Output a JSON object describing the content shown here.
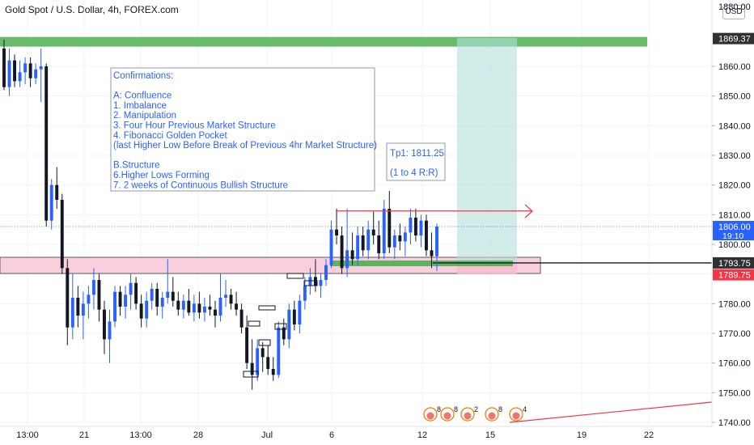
{
  "title": "Gold Spot / U.S. Dollar, 4h, FOREX.com",
  "currency": "USD",
  "price_axis_top": "1880.00",
  "price_labels": [
    {
      "price": 1869.37,
      "text": "1869.37",
      "bg": "#2e3034",
      "fg": "#ffffff"
    },
    {
      "price": 1806.0,
      "text": "1806.00",
      "sub": "19:10",
      "bg": "#2962ff",
      "fg": "#ffffff"
    },
    {
      "price": 1793.75,
      "text": "1793.75",
      "bg": "#2e3034",
      "fg": "#ffffff"
    },
    {
      "price": 1789.75,
      "text": "1789.75",
      "bg": "#f23645",
      "fg": "#ffffff"
    }
  ],
  "annotation": {
    "lines": [
      "Confirmations:",
      "",
      "A: Confluence",
      "1. Imbalance",
      "2. Manipulation",
      "3. Four Hour Previous Market Structure",
      "4. Fibonacci Golden Pocket",
      "(last Higher Low Before Break of Previous 4hr Market Structure)",
      "",
      "B.Structure",
      "6.Higher Lows Forming",
      "7. 2 weeks of Continuous Bullish Structure"
    ],
    "color": "#2962ff"
  },
  "target": {
    "line1": "Tp1: 1811.25",
    "line2": "(1 to 4 R:R)"
  },
  "colors": {
    "up": "#2962ff",
    "down": "#131722",
    "zone_green": "#4caf50",
    "zone_red": "#f8bbd0",
    "tp_fill": "#b2dfdb"
  },
  "events": [
    "8",
    "8",
    "2",
    "8",
    "4"
  ],
  "chart_data": {
    "type": "candlestick",
    "title": "Gold Spot / U.S. Dollar, 4h, FOREX.com",
    "x_tick_labels": [
      "13:00",
      "21",
      "13:00",
      "28",
      "Jul",
      "6",
      "12",
      "15",
      "19",
      "22"
    ],
    "y_ticks": [
      1740,
      1750,
      1760,
      1770,
      1780,
      1790,
      1800,
      1810,
      1820,
      1830,
      1840,
      1850,
      1860
    ],
    "ylim": [
      1738,
      1880
    ],
    "last_price": 1806.0,
    "levels": {
      "supply_zone": [
        1866.5,
        1869.37
      ],
      "demand_zone_top": 1793.75,
      "demand_zone_bottom": 1789.75,
      "take_profit": 1811.25
    },
    "candles": [
      {
        "o": 1866,
        "h": 1869,
        "l": 1852,
        "c": 1853
      },
      {
        "o": 1853,
        "h": 1866,
        "l": 1850,
        "c": 1862
      },
      {
        "o": 1862,
        "h": 1864,
        "l": 1853,
        "c": 1855
      },
      {
        "o": 1855,
        "h": 1862,
        "l": 1853,
        "c": 1858
      },
      {
        "o": 1858,
        "h": 1863,
        "l": 1854,
        "c": 1861
      },
      {
        "o": 1861,
        "h": 1863,
        "l": 1853,
        "c": 1856
      },
      {
        "o": 1856,
        "h": 1861,
        "l": 1854,
        "c": 1859
      },
      {
        "o": 1859,
        "h": 1866,
        "l": 1848,
        "c": 1860
      },
      {
        "o": 1860,
        "h": 1861,
        "l": 1806,
        "c": 1808
      },
      {
        "o": 1808,
        "h": 1822,
        "l": 1805,
        "c": 1820
      },
      {
        "o": 1820,
        "h": 1826,
        "l": 1812,
        "c": 1815
      },
      {
        "o": 1815,
        "h": 1817,
        "l": 1790,
        "c": 1792
      },
      {
        "o": 1792,
        "h": 1795,
        "l": 1766,
        "c": 1772
      },
      {
        "o": 1772,
        "h": 1790,
        "l": 1768,
        "c": 1782
      },
      {
        "o": 1782,
        "h": 1786,
        "l": 1772,
        "c": 1776
      },
      {
        "o": 1776,
        "h": 1784,
        "l": 1768,
        "c": 1780
      },
      {
        "o": 1780,
        "h": 1786,
        "l": 1775,
        "c": 1783
      },
      {
        "o": 1783,
        "h": 1792,
        "l": 1778,
        "c": 1788
      },
      {
        "o": 1788,
        "h": 1790,
        "l": 1774,
        "c": 1778
      },
      {
        "o": 1778,
        "h": 1781,
        "l": 1763,
        "c": 1768
      },
      {
        "o": 1768,
        "h": 1778,
        "l": 1760,
        "c": 1774
      },
      {
        "o": 1774,
        "h": 1786,
        "l": 1772,
        "c": 1784
      },
      {
        "o": 1784,
        "h": 1786,
        "l": 1776,
        "c": 1779
      },
      {
        "o": 1779,
        "h": 1786,
        "l": 1775,
        "c": 1783
      },
      {
        "o": 1783,
        "h": 1790,
        "l": 1778,
        "c": 1787
      },
      {
        "o": 1787,
        "h": 1789,
        "l": 1778,
        "c": 1780
      },
      {
        "o": 1780,
        "h": 1783,
        "l": 1772,
        "c": 1775
      },
      {
        "o": 1775,
        "h": 1784,
        "l": 1772,
        "c": 1781
      },
      {
        "o": 1781,
        "h": 1787,
        "l": 1778,
        "c": 1785
      },
      {
        "o": 1785,
        "h": 1787,
        "l": 1776,
        "c": 1779
      },
      {
        "o": 1779,
        "h": 1784,
        "l": 1775,
        "c": 1782
      },
      {
        "o": 1782,
        "h": 1795,
        "l": 1780,
        "c": 1784
      },
      {
        "o": 1784,
        "h": 1789,
        "l": 1779,
        "c": 1781
      },
      {
        "o": 1781,
        "h": 1784,
        "l": 1776,
        "c": 1778
      },
      {
        "o": 1778,
        "h": 1783,
        "l": 1775,
        "c": 1781
      },
      {
        "o": 1781,
        "h": 1785,
        "l": 1776,
        "c": 1777
      },
      {
        "o": 1777,
        "h": 1783,
        "l": 1774,
        "c": 1780
      },
      {
        "o": 1780,
        "h": 1784,
        "l": 1775,
        "c": 1777
      },
      {
        "o": 1777,
        "h": 1782,
        "l": 1774,
        "c": 1779
      },
      {
        "o": 1779,
        "h": 1783,
        "l": 1776,
        "c": 1778
      },
      {
        "o": 1778,
        "h": 1781,
        "l": 1772,
        "c": 1776
      },
      {
        "o": 1776,
        "h": 1790,
        "l": 1774,
        "c": 1782
      },
      {
        "o": 1782,
        "h": 1788,
        "l": 1779,
        "c": 1783
      },
      {
        "o": 1783,
        "h": 1785,
        "l": 1778,
        "c": 1780
      },
      {
        "o": 1780,
        "h": 1784,
        "l": 1776,
        "c": 1778
      },
      {
        "o": 1778,
        "h": 1780,
        "l": 1770,
        "c": 1772
      },
      {
        "o": 1772,
        "h": 1776,
        "l": 1758,
        "c": 1760
      },
      {
        "o": 1760,
        "h": 1768,
        "l": 1751,
        "c": 1756
      },
      {
        "o": 1756,
        "h": 1768,
        "l": 1754,
        "c": 1765
      },
      {
        "o": 1765,
        "h": 1767,
        "l": 1757,
        "c": 1762
      },
      {
        "o": 1762,
        "h": 1766,
        "l": 1756,
        "c": 1758
      },
      {
        "o": 1758,
        "h": 1762,
        "l": 1754,
        "c": 1756
      },
      {
        "o": 1756,
        "h": 1774,
        "l": 1755,
        "c": 1772
      },
      {
        "o": 1772,
        "h": 1775,
        "l": 1766,
        "c": 1768
      },
      {
        "o": 1768,
        "h": 1780,
        "l": 1765,
        "c": 1778
      },
      {
        "o": 1778,
        "h": 1781,
        "l": 1771,
        "c": 1773
      },
      {
        "o": 1773,
        "h": 1783,
        "l": 1770,
        "c": 1781
      },
      {
        "o": 1781,
        "h": 1789,
        "l": 1778,
        "c": 1786
      },
      {
        "o": 1786,
        "h": 1792,
        "l": 1783,
        "c": 1789
      },
      {
        "o": 1789,
        "h": 1795,
        "l": 1784,
        "c": 1786
      },
      {
        "o": 1786,
        "h": 1790,
        "l": 1782,
        "c": 1788
      },
      {
        "o": 1788,
        "h": 1795,
        "l": 1786,
        "c": 1793
      },
      {
        "o": 1793,
        "h": 1808,
        "l": 1792,
        "c": 1805
      },
      {
        "o": 1805,
        "h": 1812,
        "l": 1800,
        "c": 1803
      },
      {
        "o": 1803,
        "h": 1806,
        "l": 1790,
        "c": 1792
      },
      {
        "o": 1792,
        "h": 1812,
        "l": 1789,
        "c": 1798
      },
      {
        "o": 1798,
        "h": 1804,
        "l": 1793,
        "c": 1795
      },
      {
        "o": 1795,
        "h": 1806,
        "l": 1793,
        "c": 1803
      },
      {
        "o": 1803,
        "h": 1806,
        "l": 1796,
        "c": 1798
      },
      {
        "o": 1798,
        "h": 1808,
        "l": 1795,
        "c": 1805
      },
      {
        "o": 1805,
        "h": 1811,
        "l": 1800,
        "c": 1803
      },
      {
        "o": 1803,
        "h": 1808,
        "l": 1795,
        "c": 1797
      },
      {
        "o": 1797,
        "h": 1815,
        "l": 1795,
        "c": 1812
      },
      {
        "o": 1812,
        "h": 1818,
        "l": 1797,
        "c": 1799
      },
      {
        "o": 1799,
        "h": 1805,
        "l": 1795,
        "c": 1803
      },
      {
        "o": 1803,
        "h": 1807,
        "l": 1798,
        "c": 1801
      },
      {
        "o": 1801,
        "h": 1806,
        "l": 1796,
        "c": 1804
      },
      {
        "o": 1804,
        "h": 1812,
        "l": 1800,
        "c": 1809
      },
      {
        "o": 1809,
        "h": 1812,
        "l": 1801,
        "c": 1803
      },
      {
        "o": 1803,
        "h": 1810,
        "l": 1799,
        "c": 1808
      },
      {
        "o": 1808,
        "h": 1810,
        "l": 1796,
        "c": 1798
      },
      {
        "o": 1798,
        "h": 1804,
        "l": 1792,
        "c": 1796
      },
      {
        "o": 1796,
        "h": 1807,
        "l": 1791,
        "c": 1806
      }
    ]
  }
}
